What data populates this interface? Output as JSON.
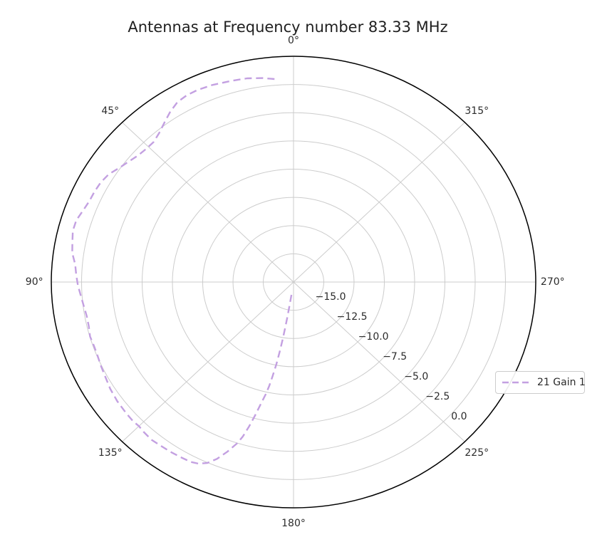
{
  "chart_data": {
    "type": "line",
    "subtype": "polar",
    "title": "Antennas at Frequency number 83.33 MHz",
    "theta_zero_location": "top",
    "theta_direction": "counterclockwise",
    "grid": true,
    "r_min": -17.5,
    "r_max": 2.5,
    "angular_ticks_deg": [
      0,
      45,
      90,
      135,
      180,
      225,
      270,
      315
    ],
    "angular_tick_labels": [
      "0°",
      "45°",
      "90°",
      "135°",
      "180°",
      "225°",
      "270°",
      "315°"
    ],
    "radial_ticks": [
      -15.0,
      -12.5,
      -10.0,
      -7.5,
      -5.0,
      -2.5,
      0.0
    ],
    "radial_tick_labels": [
      "−15.0",
      "−12.5",
      "−10.0",
      "−7.5",
      "−5.0",
      "−2.5",
      "0.0"
    ],
    "radial_label_angle_deg": 225,
    "colors": {
      "series": "#c3a0e1",
      "grid": "#cccccc",
      "boundary": "#000000",
      "text": "#2b2b2b"
    },
    "legend": {
      "position": "center-right",
      "entries": [
        {
          "label": "21 Gain 1",
          "linestyle": "dashed",
          "color": "#c3a0e1"
        }
      ]
    },
    "series": [
      {
        "name": "21 Gain 1",
        "linestyle": "dashed",
        "color": "#c3a0e1",
        "theta_deg": [
          5,
          8,
          12,
          16,
          21,
          25,
          28,
          31,
          34,
          37,
          40,
          43,
          46,
          49,
          52,
          55,
          58,
          61,
          64,
          67,
          70,
          73,
          76,
          79,
          82,
          85,
          88,
          91,
          94,
          97,
          100,
          103,
          106,
          109,
          112,
          115,
          118,
          122,
          126,
          130,
          133,
          135,
          137,
          140,
          143,
          146,
          149,
          152,
          154,
          156,
          158,
          160,
          162,
          163,
          164,
          165,
          166,
          167,
          167.7,
          168.3,
          169,
          169.5,
          170,
          170.3,
          170.7,
          171,
          171.5
        ],
        "gain_db": [
          0.55,
          0.75,
          0.95,
          1.05,
          1.2,
          1.27,
          1.25,
          1.1,
          0.7,
          0.2,
          -0.25,
          -0.55,
          -0.55,
          -0.45,
          -0.2,
          0.1,
          0.5,
          0.7,
          0.78,
          0.82,
          1.0,
          1.25,
          1.28,
          1.1,
          0.95,
          0.6,
          0.45,
          0.3,
          0.1,
          -0.05,
          -0.16,
          -0.15,
          -0.02,
          -0.08,
          -0.05,
          0.05,
          0.15,
          0.35,
          0.48,
          0.55,
          0.6,
          0.55,
          0.65,
          0.74,
          0.68,
          0.65,
          0.6,
          0.55,
          0.4,
          0.05,
          -0.6,
          -1.5,
          -2.5,
          -3.2,
          -4.2,
          -5.3,
          -6.4,
          -7.3,
          -8.1,
          -9.0,
          -10.1,
          -11.2,
          -12.3,
          -13.3,
          -14.4,
          -15.4,
          -16.5
        ]
      }
    ]
  }
}
